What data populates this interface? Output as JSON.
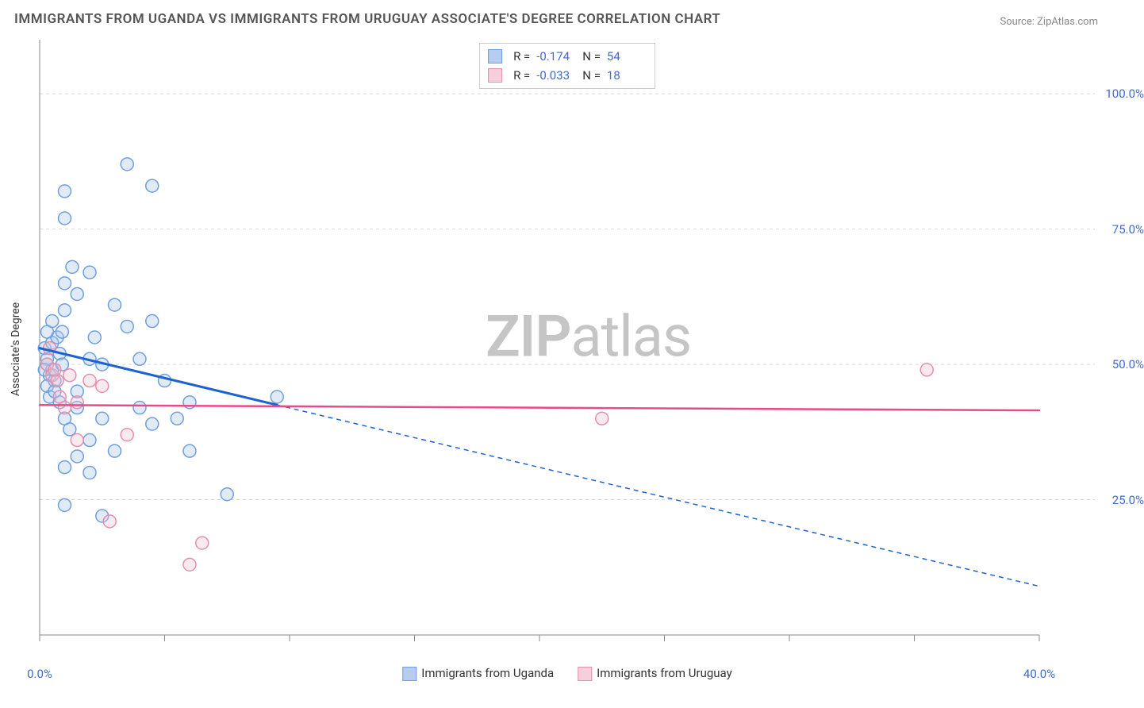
{
  "title": "IMMIGRANTS FROM UGANDA VS IMMIGRANTS FROM URUGUAY ASSOCIATE'S DEGREE CORRELATION CHART",
  "source": "Source: ZipAtlas.com",
  "ylabel": "Associate's Degree",
  "watermark_bold": "ZIP",
  "watermark_rest": "atlas",
  "chart": {
    "type": "scatter",
    "background_color": "#ffffff",
    "grid_color": "#d6d6d6",
    "grid_dash": "4,4",
    "axis_color": "#888888",
    "tick_color": "#888888",
    "tick_label_color": "#4169d1",
    "tick_fontsize": 15,
    "xlim": [
      0,
      40
    ],
    "ylim": [
      0,
      110
    ],
    "xticks": [
      0,
      5,
      10,
      15,
      20,
      25,
      30,
      35,
      40
    ],
    "xtick_labels": [
      "0.0%",
      "",
      "",
      "",
      "",
      "",
      "",
      "",
      "40.0%"
    ],
    "yticks": [
      25,
      50,
      75,
      100
    ],
    "ytick_labels": [
      "25.0%",
      "50.0%",
      "75.0%",
      "100.0%"
    ],
    "marker_radius": 8,
    "marker_fill_opacity": 0.35,
    "marker_stroke_width": 1.5,
    "series": [
      {
        "name": "Immigrants from Uganda",
        "color_fill": "#a9c5ec",
        "color_stroke": "#6f9fe0",
        "legend_swatch_fill": "#b7cdef",
        "legend_swatch_stroke": "#6f9fe0",
        "R": "-0.174",
        "N": "54",
        "regression": {
          "color": "#1e62d0",
          "width": 3,
          "x1": 0,
          "y1": 53,
          "x2": 9.5,
          "y2": 42.5,
          "dash_extend_x2": 40,
          "dash_extend_y2": 9,
          "dash_pattern": "6,5"
        },
        "points": [
          [
            0.2,
            53
          ],
          [
            0.3,
            51
          ],
          [
            0.5,
            54
          ],
          [
            0.3,
            50
          ],
          [
            0.7,
            55
          ],
          [
            0.4,
            48
          ],
          [
            0.6,
            47
          ],
          [
            0.3,
            46
          ],
          [
            0.8,
            52
          ],
          [
            0.5,
            49
          ],
          [
            0.9,
            56
          ],
          [
            1.0,
            65
          ],
          [
            1.3,
            68
          ],
          [
            1.0,
            60
          ],
          [
            1.5,
            63
          ],
          [
            2.0,
            67
          ],
          [
            3.5,
            87
          ],
          [
            1.0,
            82
          ],
          [
            4.5,
            83
          ],
          [
            1.0,
            77
          ],
          [
            1.5,
            45
          ],
          [
            2.0,
            51
          ],
          [
            2.5,
            50
          ],
          [
            3.0,
            61
          ],
          [
            3.5,
            57
          ],
          [
            4.0,
            51
          ],
          [
            2.2,
            55
          ],
          [
            4.5,
            58
          ],
          [
            1.0,
            40
          ],
          [
            1.5,
            42
          ],
          [
            2.0,
            36
          ],
          [
            2.5,
            40
          ],
          [
            1.2,
            38
          ],
          [
            4.0,
            42
          ],
          [
            5.0,
            47
          ],
          [
            6.0,
            43
          ],
          [
            1.5,
            33
          ],
          [
            2.0,
            30
          ],
          [
            1.0,
            31
          ],
          [
            3.0,
            34
          ],
          [
            5.5,
            40
          ],
          [
            6.0,
            34
          ],
          [
            9.5,
            44
          ],
          [
            1.0,
            24
          ],
          [
            2.5,
            22
          ],
          [
            4.5,
            39
          ],
          [
            7.5,
            26
          ],
          [
            0.4,
            44
          ],
          [
            0.8,
            43
          ],
          [
            0.6,
            45
          ],
          [
            0.5,
            58
          ],
          [
            0.2,
            49
          ],
          [
            0.3,
            56
          ],
          [
            0.9,
            50
          ]
        ]
      },
      {
        "name": "Immigrants from Uruguay",
        "color_fill": "#f2c3d1",
        "color_stroke": "#e58fac",
        "legend_swatch_fill": "#f6cfda",
        "legend_swatch_stroke": "#e58fac",
        "R": "-0.033",
        "N": "18",
        "regression": {
          "color": "#e94b8a",
          "width": 2.5,
          "x1": 0,
          "y1": 42.5,
          "x2": 40,
          "y2": 41.5,
          "dash_extend_x2": null
        },
        "points": [
          [
            0.3,
            50
          ],
          [
            0.5,
            48
          ],
          [
            0.7,
            47
          ],
          [
            0.4,
            53
          ],
          [
            0.6,
            49
          ],
          [
            1.2,
            48
          ],
          [
            2.0,
            47
          ],
          [
            2.5,
            46
          ],
          [
            1.5,
            43
          ],
          [
            0.8,
            44
          ],
          [
            1.0,
            42
          ],
          [
            1.5,
            36
          ],
          [
            3.5,
            37
          ],
          [
            2.8,
            21
          ],
          [
            6.5,
            17
          ],
          [
            6.0,
            13
          ],
          [
            22.5,
            40
          ],
          [
            35.5,
            49
          ]
        ]
      }
    ]
  },
  "bottom_legend": [
    "Immigrants from Uganda",
    "Immigrants from Uruguay"
  ]
}
